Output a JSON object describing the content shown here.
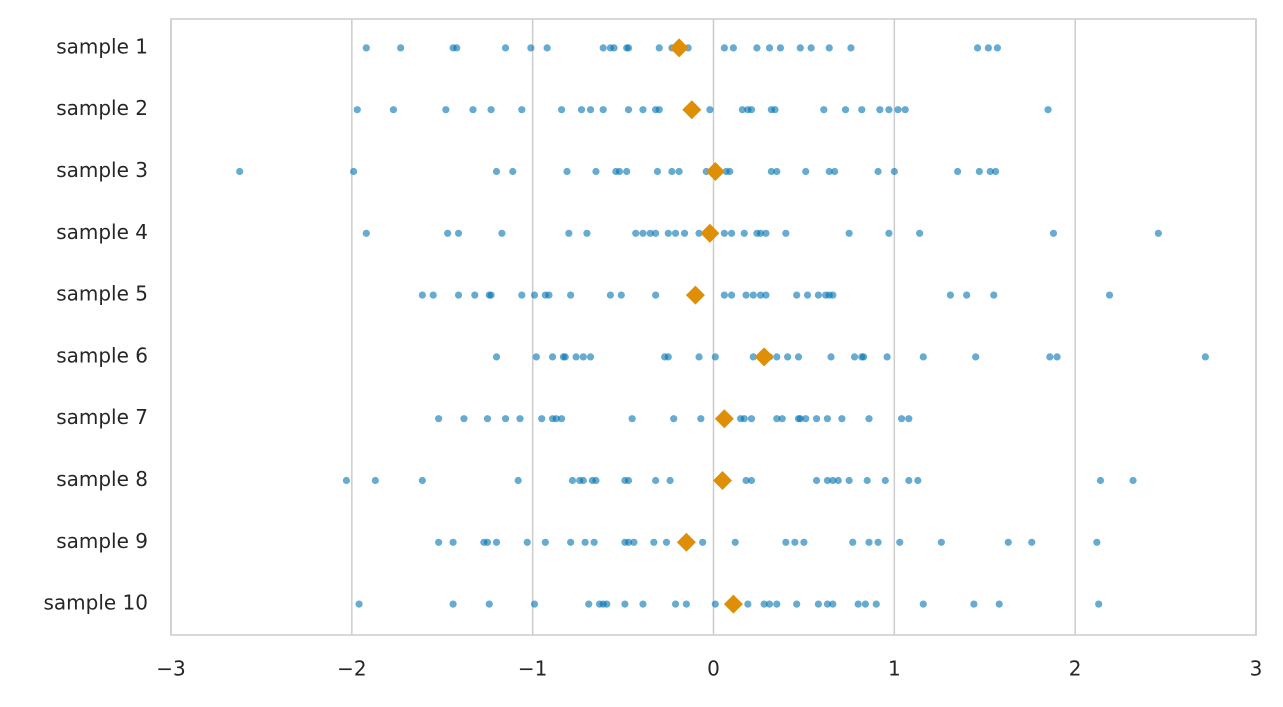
{
  "chart_data": {
    "type": "strip",
    "categories": [
      "sample 1",
      "sample 2",
      "sample 3",
      "sample 4",
      "sample 5",
      "sample 6",
      "sample 7",
      "sample 8",
      "sample 9",
      "sample 10"
    ],
    "points": [
      [
        -1.92,
        -1.73,
        -1.44,
        -1.42,
        -1.15,
        -1.01,
        -0.92,
        -0.61,
        -0.57,
        -0.55,
        -0.48,
        -0.47,
        -0.3,
        -0.23,
        -0.14,
        0.06,
        0.11,
        0.24,
        0.31,
        0.37,
        0.48,
        0.54,
        0.64,
        0.76,
        1.46,
        1.52,
        1.57
      ],
      [
        -1.97,
        -1.77,
        -1.48,
        -1.33,
        -1.23,
        -1.06,
        -0.84,
        -0.73,
        -0.68,
        -0.61,
        -0.47,
        -0.39,
        -0.32,
        -0.3,
        -0.02,
        0.16,
        0.19,
        0.21,
        0.32,
        0.34,
        0.61,
        0.73,
        0.82,
        0.92,
        0.97,
        1.02,
        1.06,
        1.85
      ],
      [
        -2.62,
        -1.99,
        -1.2,
        -1.11,
        -0.81,
        -0.65,
        -0.54,
        -0.52,
        -0.48,
        -0.31,
        -0.23,
        -0.19,
        -0.04,
        0.07,
        0.09,
        0.32,
        0.35,
        0.51,
        0.64,
        0.67,
        0.91,
        1.0,
        1.35,
        1.47,
        1.53,
        1.56
      ],
      [
        -1.92,
        -1.47,
        -1.41,
        -1.17,
        -0.8,
        -0.7,
        -0.43,
        -0.39,
        -0.35,
        -0.32,
        -0.25,
        -0.21,
        -0.16,
        -0.08,
        0.06,
        0.1,
        0.17,
        0.24,
        0.26,
        0.29,
        0.4,
        0.75,
        0.97,
        1.14,
        1.88,
        2.46
      ],
      [
        -1.61,
        -1.55,
        -1.41,
        -1.32,
        -1.24,
        -1.23,
        -1.06,
        -0.99,
        -0.93,
        -0.91,
        -0.79,
        -0.57,
        -0.51,
        -0.32,
        0.06,
        0.1,
        0.18,
        0.22,
        0.26,
        0.29,
        0.46,
        0.52,
        0.58,
        0.62,
        0.64,
        0.66,
        1.31,
        1.4,
        1.55,
        2.19
      ],
      [
        -1.2,
        -0.98,
        -0.89,
        -0.83,
        -0.82,
        -0.76,
        -0.72,
        -0.68,
        -0.27,
        -0.25,
        -0.08,
        0.01,
        0.22,
        0.31,
        0.35,
        0.41,
        0.47,
        0.65,
        0.78,
        0.82,
        0.83,
        0.96,
        1.16,
        1.45,
        1.86,
        1.9,
        2.72
      ],
      [
        -1.52,
        -1.38,
        -1.25,
        -1.15,
        -1.07,
        -0.95,
        -0.89,
        -0.87,
        -0.84,
        -0.45,
        -0.22,
        -0.07,
        0.15,
        0.17,
        0.21,
        0.35,
        0.38,
        0.47,
        0.48,
        0.51,
        0.57,
        0.63,
        0.71,
        0.86,
        1.04,
        1.08
      ],
      [
        -2.03,
        -1.87,
        -1.61,
        -1.08,
        -0.78,
        -0.74,
        -0.72,
        -0.67,
        -0.65,
        -0.49,
        -0.47,
        -0.32,
        -0.24,
        0.18,
        0.21,
        0.57,
        0.63,
        0.66,
        0.69,
        0.75,
        0.85,
        0.95,
        1.08,
        1.13,
        2.14,
        2.32
      ],
      [
        -1.52,
        -1.44,
        -1.27,
        -1.25,
        -1.2,
        -1.03,
        -0.93,
        -0.79,
        -0.71,
        -0.66,
        -0.49,
        -0.47,
        -0.44,
        -0.33,
        -0.26,
        -0.06,
        0.12,
        0.4,
        0.45,
        0.5,
        0.77,
        0.86,
        0.91,
        1.03,
        1.26,
        1.63,
        1.76,
        2.12
      ],
      [
        -1.96,
        -1.44,
        -1.24,
        -0.99,
        -0.69,
        -0.63,
        -0.61,
        -0.59,
        -0.49,
        -0.39,
        -0.21,
        -0.15,
        0.01,
        0.19,
        0.28,
        0.31,
        0.35,
        0.46,
        0.58,
        0.63,
        0.66,
        0.8,
        0.84,
        0.9,
        1.16,
        1.44,
        1.58,
        2.13
      ]
    ],
    "means": [
      -0.19,
      -0.12,
      0.01,
      -0.02,
      -0.1,
      0.28,
      0.06,
      0.05,
      -0.15,
      0.11
    ],
    "point_color": "#0173b2",
    "mean_color": "#de8f05",
    "xlim": [
      -3,
      3
    ],
    "xticks": [
      {
        "value": -3,
        "label": "−3"
      },
      {
        "value": -2,
        "label": "−2"
      },
      {
        "value": -1,
        "label": "−1"
      },
      0,
      1,
      2,
      3
    ],
    "grid": true
  }
}
